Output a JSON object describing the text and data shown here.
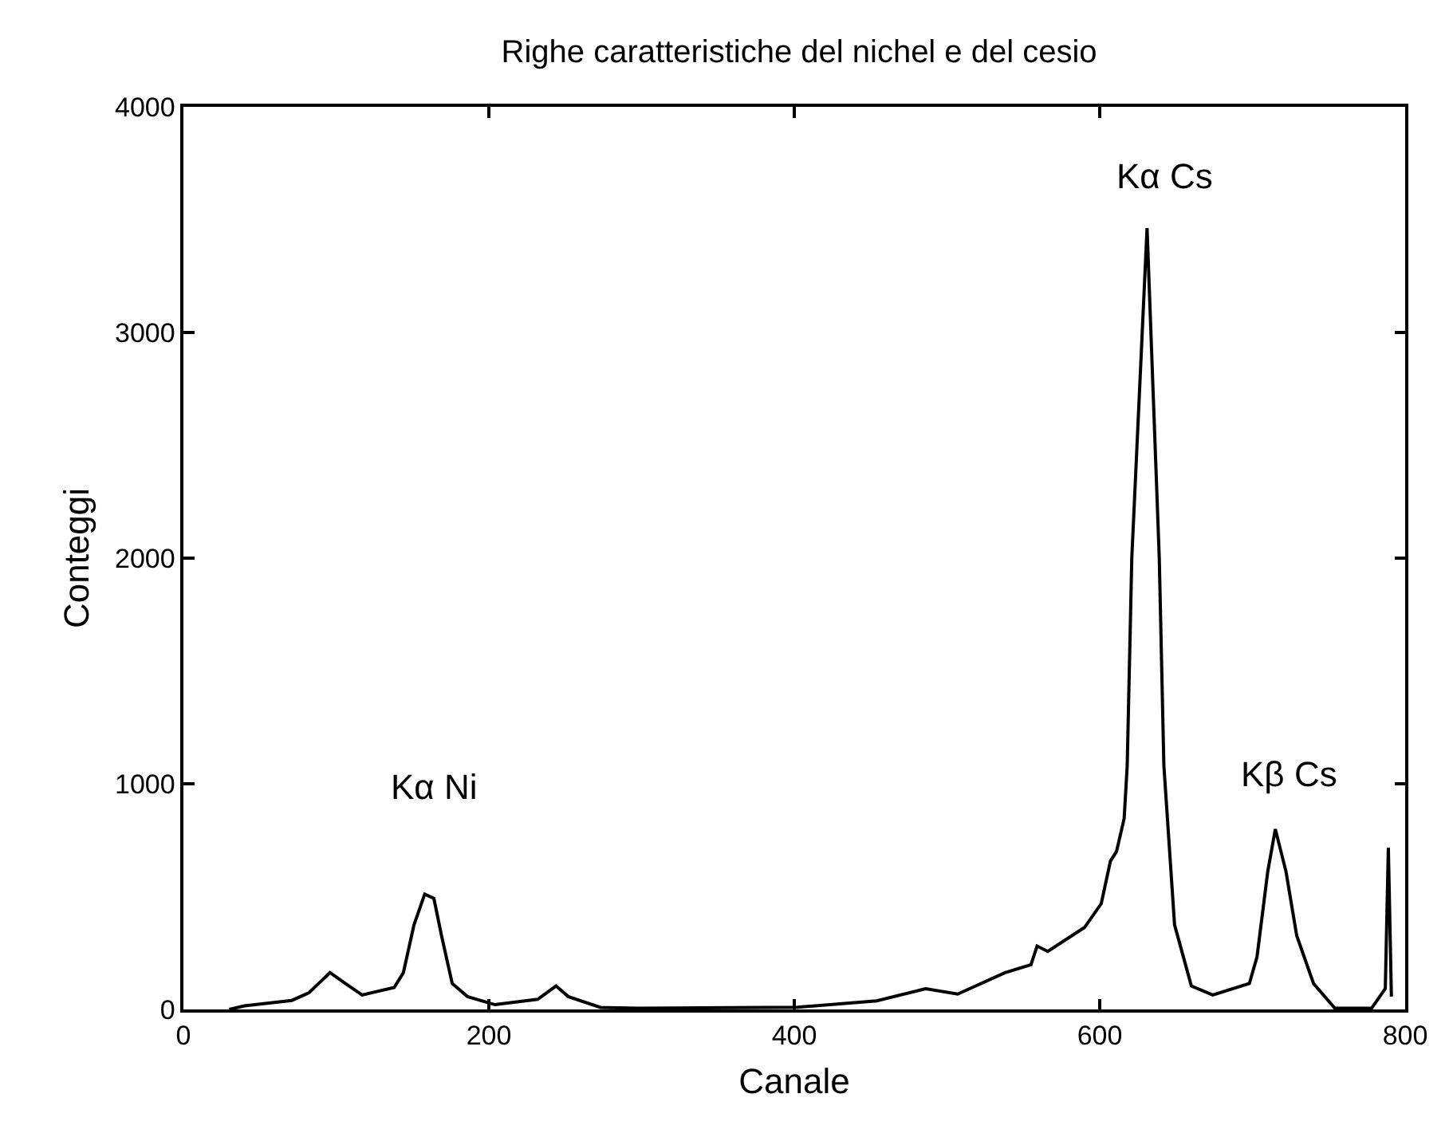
{
  "chart_data": {
    "type": "line",
    "title": "Righe caratteristiche del nichel e del cesio",
    "xlabel": "Canale",
    "ylabel": "Conteggi",
    "x": [
      30,
      40,
      71,
      82,
      96,
      106,
      117,
      138,
      144,
      151,
      158,
      164,
      169,
      176,
      186,
      204,
      232,
      244,
      252,
      273,
      298,
      402,
      454,
      486,
      507,
      538,
      555,
      559,
      566,
      590,
      601,
      607,
      611,
      616,
      618,
      621,
      631,
      639,
      642,
      649,
      660,
      674,
      698,
      703,
      710,
      715,
      722,
      729,
      740,
      754,
      778,
      787,
      789,
      791
    ],
    "series": [
      {
        "color": "#000000",
        "values": [
          0,
          16,
          40,
          73,
          163,
          115,
          64,
          97,
          162,
          375,
          511,
          492,
          327,
          115,
          57,
          21,
          45,
          104,
          57,
          9,
          5,
          10,
          38,
          92,
          68,
          163,
          198,
          281,
          257,
          363,
          469,
          657,
          700,
          846,
          1081,
          2000,
          3463,
          2000,
          1081,
          375,
          104,
          64,
          115,
          233,
          610,
          799,
          610,
          327,
          115,
          5,
          5,
          92,
          716,
          57
        ]
      }
    ],
    "annotations": [
      "Kα Ni",
      "Kα Cs",
      "Kβ Cs"
    ],
    "xlim": [
      0,
      800
    ],
    "xticks": [
      0,
      200,
      400,
      600,
      800
    ],
    "ylim": [
      0,
      4000
    ],
    "yticks": [
      0,
      1000,
      2000,
      3000,
      4000
    ],
    "marker": "none",
    "line_style": "solid"
  }
}
